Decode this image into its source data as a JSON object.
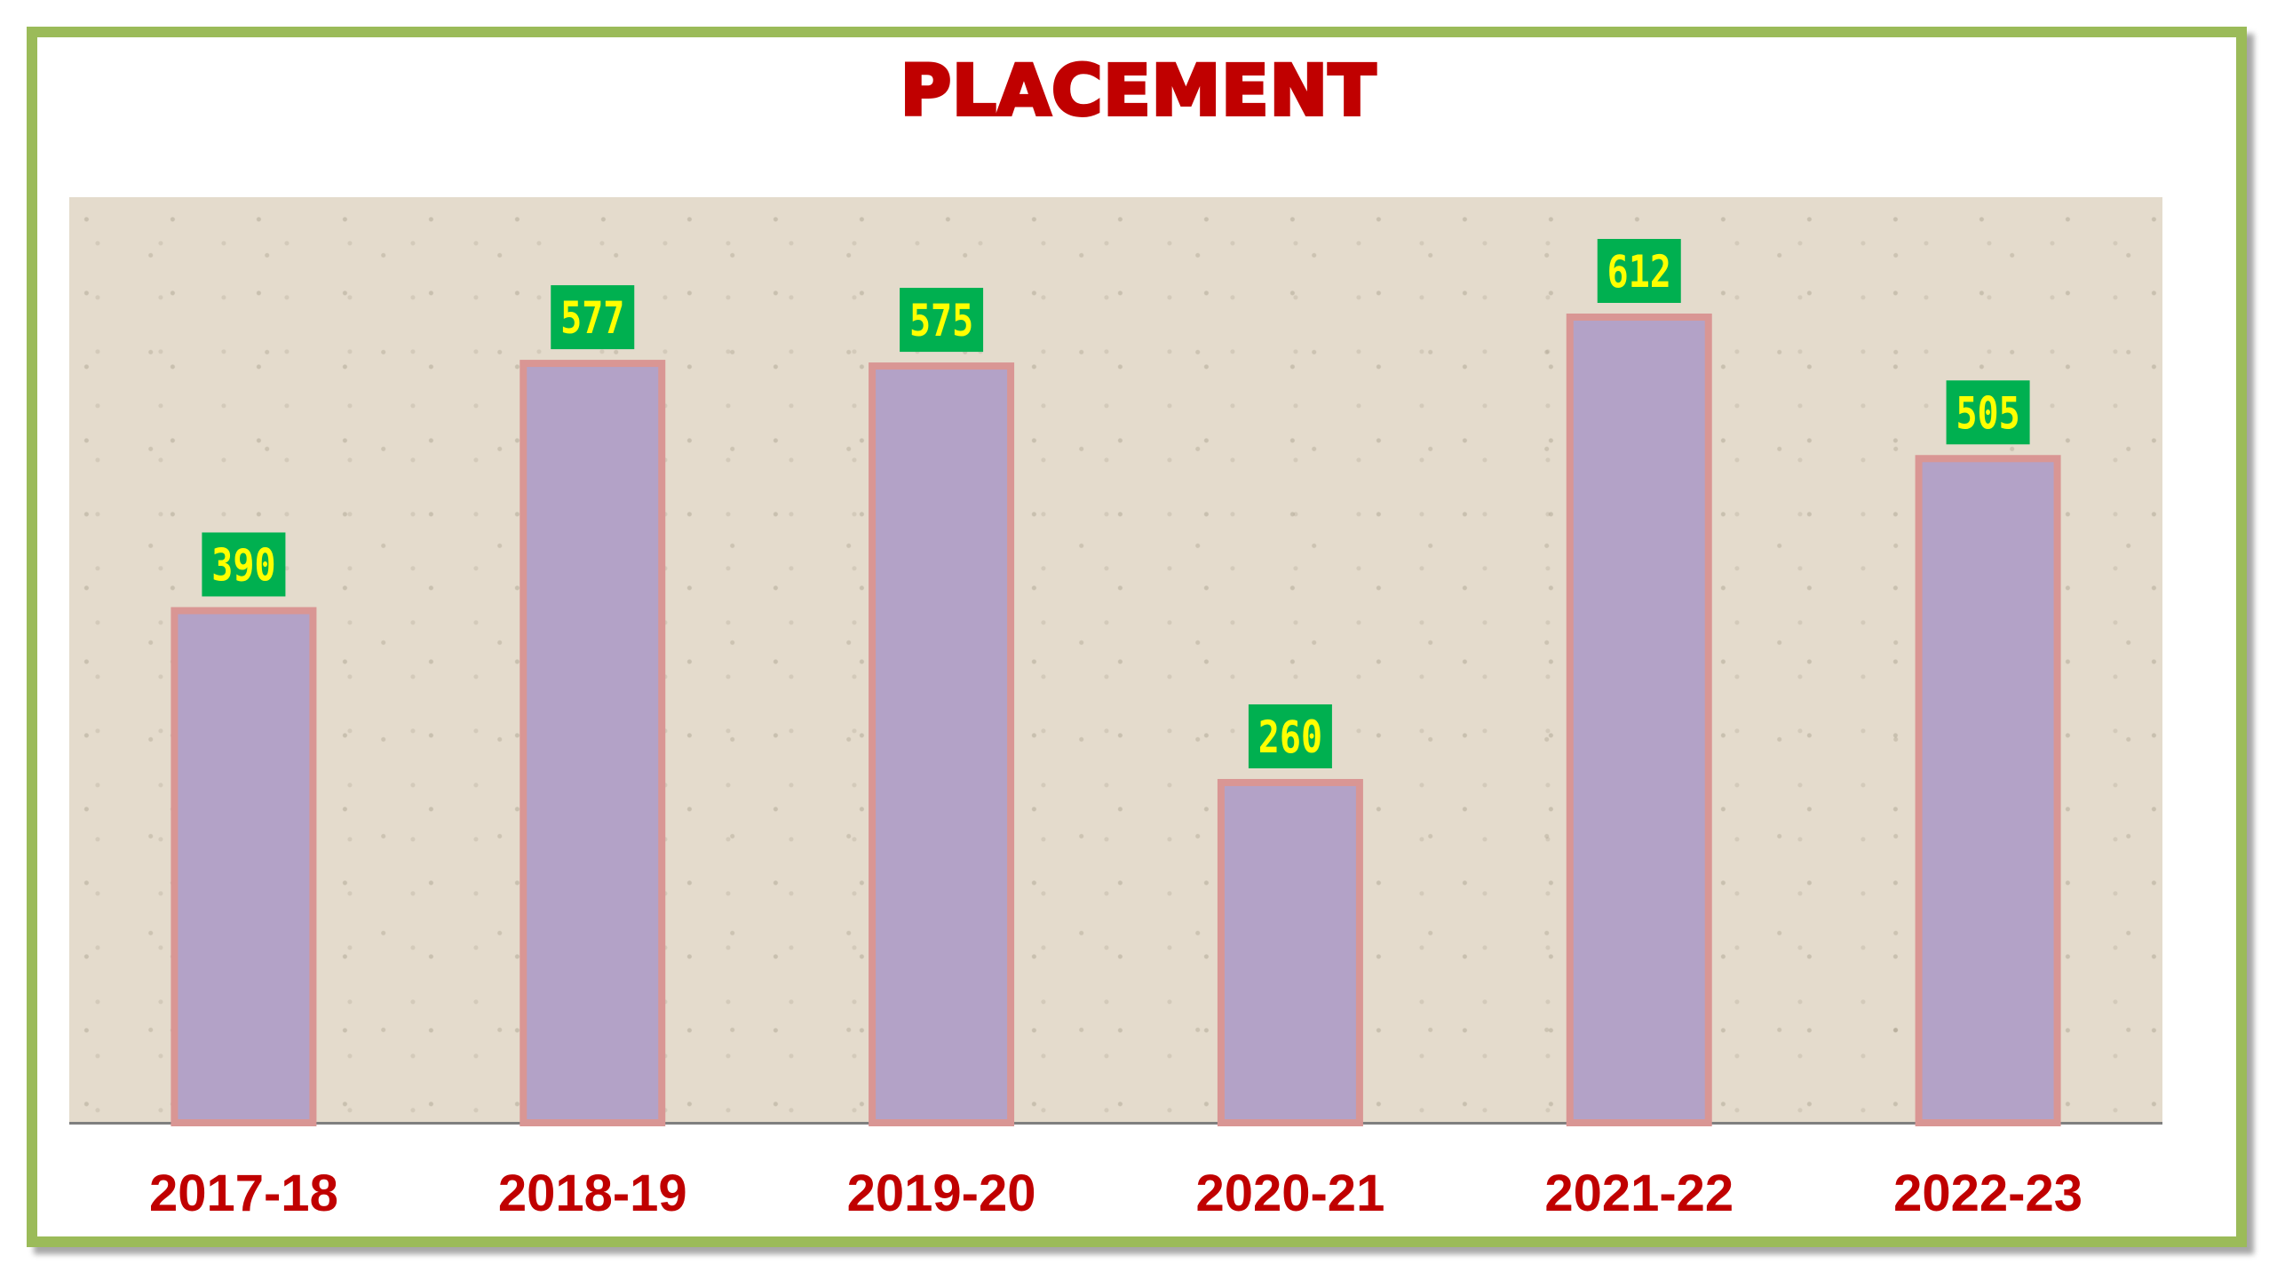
{
  "chart_data": {
    "type": "bar",
    "title": "PLACEMENT",
    "categories": [
      "2017-18",
      "2018-19",
      "2019-20",
      "2020-21",
      "2021-22",
      "2022-23"
    ],
    "values": [
      390,
      577,
      575,
      260,
      612,
      505
    ],
    "data_labels": [
      "390",
      "577",
      "575",
      "260",
      "612",
      "505"
    ],
    "xlabel": "",
    "ylabel": "",
    "ylim": [
      0,
      700
    ],
    "grid": false,
    "legend": "none",
    "colors": {
      "bar_fill": "#b3a2c7",
      "bar_border": "#d99694",
      "label_box": "#00b050",
      "label_text": "#ffff00",
      "title": "#c00000",
      "category_text": "#c00000",
      "frame": "#9bbb59",
      "plot_background": "#e4dbcc"
    }
  }
}
